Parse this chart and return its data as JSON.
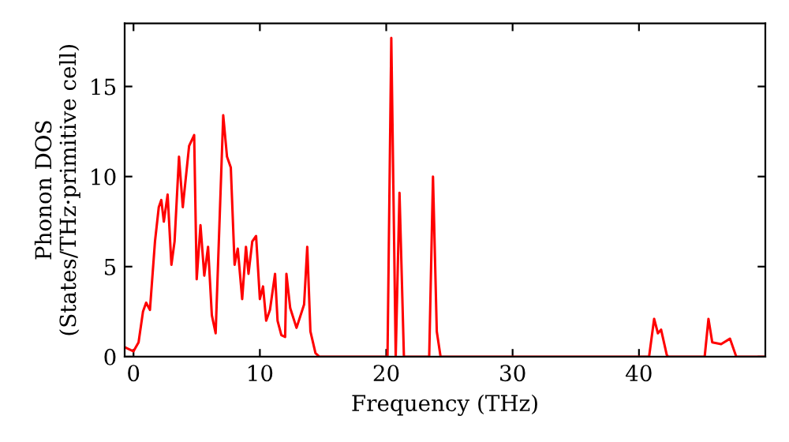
{
  "chart_data": {
    "type": "line",
    "xlabel": "Frequency (THz)",
    "ylabel": "Phonon DOS\n(States/THz·primitive cell)",
    "xlim": [
      -0.7,
      50
    ],
    "ylim": [
      0,
      18.5
    ],
    "xticks": [
      0,
      10,
      20,
      30,
      40
    ],
    "yticks": [
      0,
      5,
      10,
      15
    ],
    "grid": false,
    "legend": false,
    "marker": "none",
    "line_style": "solid",
    "series": [
      {
        "color": "#ff0000",
        "x": [
          -0.6,
          0,
          0.4,
          0.75,
          1.0,
          1.3,
          1.7,
          2.0,
          2.2,
          2.4,
          2.7,
          3.0,
          3.25,
          3.6,
          3.9,
          4.4,
          4.8,
          5.0,
          5.3,
          5.6,
          5.9,
          6.2,
          6.5,
          7.1,
          7.4,
          7.7,
          8.0,
          8.25,
          8.6,
          8.9,
          9.1,
          9.4,
          9.7,
          10.0,
          10.25,
          10.5,
          10.8,
          11.2,
          11.4,
          11.7,
          12.0,
          12.1,
          12.4,
          12.9,
          13.5,
          13.75,
          14.0,
          14.4,
          14.7,
          20.1,
          20.4,
          20.75,
          21.05,
          21.4,
          23.4,
          23.7,
          24.0,
          24.3,
          40.8,
          41.2,
          41.5,
          41.75,
          42.2,
          42.3,
          45.2,
          45.5,
          45.8,
          46.5,
          47.2,
          47.7,
          50
        ],
        "values": [
          0.5,
          0.3,
          0.8,
          2.5,
          3.0,
          2.6,
          6.4,
          8.3,
          8.7,
          7.5,
          9.0,
          5.1,
          6.4,
          11.1,
          8.3,
          11.7,
          12.3,
          4.3,
          7.3,
          4.5,
          6.1,
          2.3,
          1.3,
          13.4,
          11.1,
          10.5,
          5.1,
          6.0,
          3.2,
          6.1,
          4.6,
          6.4,
          6.7,
          3.2,
          3.9,
          2.0,
          2.6,
          4.6,
          2.0,
          1.2,
          1.1,
          4.6,
          2.7,
          1.6,
          2.9,
          6.1,
          1.4,
          0.2,
          0,
          0,
          17.7,
          0,
          9.1,
          0,
          0,
          10.0,
          1.4,
          0,
          0,
          2.1,
          1.3,
          1.5,
          0.1,
          0,
          0,
          2.1,
          0.8,
          0.7,
          1.0,
          0,
          0
        ]
      }
    ]
  }
}
